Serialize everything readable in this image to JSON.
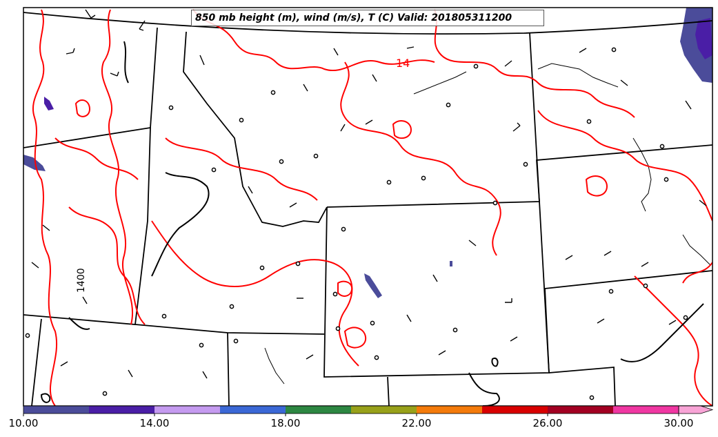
{
  "title": "850 mb height (m), wind (m/s), T (C) Valid: 201805311200",
  "contour_labels": {
    "temperature": "14",
    "height": "1400"
  },
  "colors": {
    "temperature_contour": "#ff0000",
    "height_contour": "#000000",
    "boundary": "#000000",
    "frame": "#000000"
  },
  "colorbar": {
    "ticks": [
      "10.00",
      "14.00",
      "18.00",
      "22.00",
      "26.00",
      "30.00"
    ],
    "bins": [
      "#4b4c9a",
      "#4a1ea6",
      "#c59bf0",
      "#3b68d6",
      "#2d8742",
      "#98a11a",
      "#f47b0b",
      "#d80000",
      "#a20022",
      "#f037a2",
      "#f8a4d6"
    ]
  },
  "shaded_areas": {
    "fill": "#4b4c9a",
    "accent": "#4a1ea6"
  }
}
